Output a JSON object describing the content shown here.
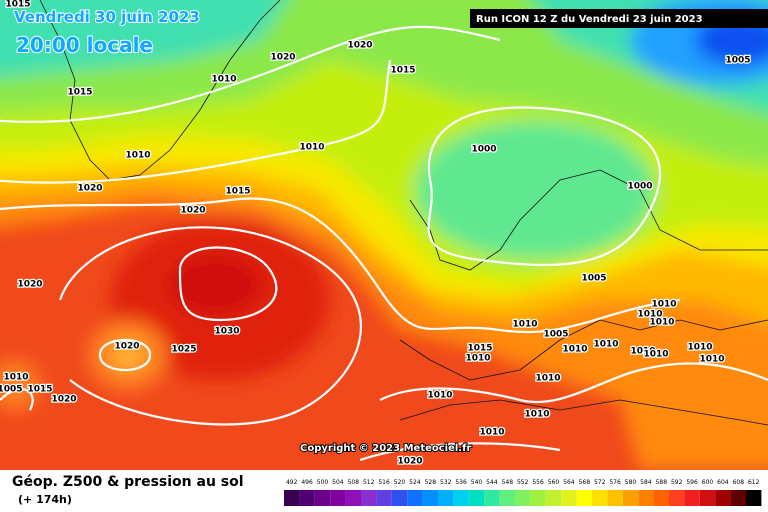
{
  "header": {
    "date": "Vendredi 30 juin 2023",
    "time": "20:00 locale",
    "run": "Run ICON 12 Z du Vendredi 23 juin 2023"
  },
  "map": {
    "isobar_labels": [
      1015,
      1020,
      1020,
      1015,
      1010,
      1005,
      1015,
      1010,
      1010,
      1000,
      1000,
      1020,
      1015,
      1020,
      1005,
      1020,
      1030,
      1010,
      1005,
      1010,
      1010,
      1010,
      1015,
      1010,
      1020,
      1025,
      1010,
      1010,
      1010,
      1010,
      1010,
      1010,
      1010,
      1010,
      1005,
      1015,
      1020,
      1010,
      1010,
      1010,
      1020
    ],
    "copyright": "Copyright © 2023 Meteociel.fr"
  },
  "legend": {
    "title": "Géop. Z500 & pression au sol",
    "lead_time": "(+ 174h)",
    "ticks": [
      492,
      496,
      500,
      504,
      508,
      512,
      516,
      520,
      524,
      528,
      532,
      536,
      540,
      544,
      548,
      552,
      556,
      560,
      564,
      568,
      572,
      576,
      580,
      584,
      588,
      592,
      596,
      600,
      604,
      608,
      612
    ],
    "colors": [
      "#3a0050",
      "#500070",
      "#6a008a",
      "#8000a0",
      "#9010b8",
      "#8a30d0",
      "#6040e0",
      "#3050f0",
      "#1070ff",
      "#0090ff",
      "#00b0ff",
      "#00d0f0",
      "#00e0c0",
      "#30e8a0",
      "#60f080",
      "#80f060",
      "#a0f040",
      "#c0f030",
      "#e0f020",
      "#ffff00",
      "#ffe000",
      "#ffc000",
      "#ffa000",
      "#ff8000",
      "#ff6000",
      "#ff4020",
      "#f02020",
      "#d01010",
      "#a00000",
      "#600000",
      "#000000"
    ]
  }
}
